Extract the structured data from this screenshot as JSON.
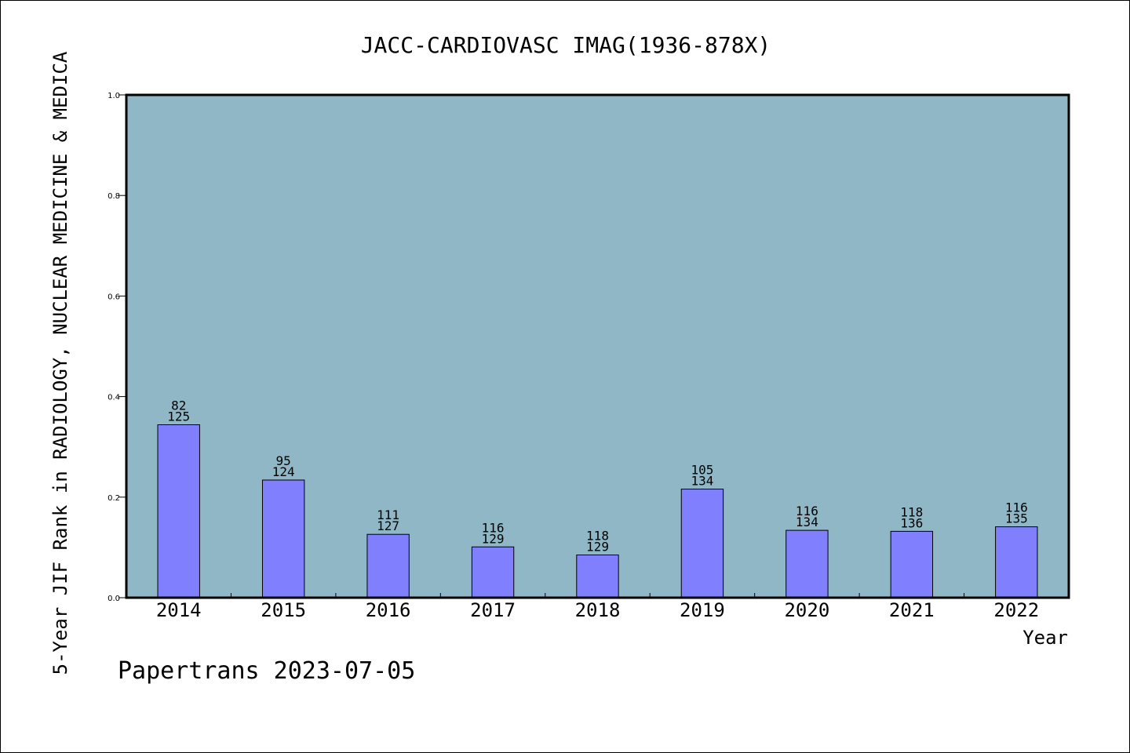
{
  "chart_data": {
    "type": "bar",
    "title": "JACC-CARDIOVASC IMAG(1936-878X)",
    "xlabel": "Year",
    "ylabel": "5-Year JIF Rank in RADIOLOGY, NUCLEAR MEDICINE & MEDICA",
    "ylim": [
      0.0,
      1.0
    ],
    "yticks": [
      "0.0",
      "0.2",
      "0.4",
      "0.6",
      "0.8",
      "1.0"
    ],
    "grid": false,
    "categories": [
      "2014",
      "2015",
      "2016",
      "2017",
      "2018",
      "2019",
      "2020",
      "2021",
      "2022"
    ],
    "values": [
      0.344,
      0.234,
      0.126,
      0.101,
      0.085,
      0.216,
      0.134,
      0.132,
      0.141
    ],
    "rank": [
      "82",
      "95",
      "111",
      "116",
      "118",
      "105",
      "116",
      "118",
      "116"
    ],
    "total": [
      "125",
      "124",
      "127",
      "129",
      "129",
      "134",
      "134",
      "136",
      "135"
    ],
    "colors": {
      "plot_background": "#8fb7c5",
      "bar_fill": "#8080ff",
      "bar_stroke": "#000000"
    }
  },
  "watermark": "Papertrans 2023-07-05"
}
